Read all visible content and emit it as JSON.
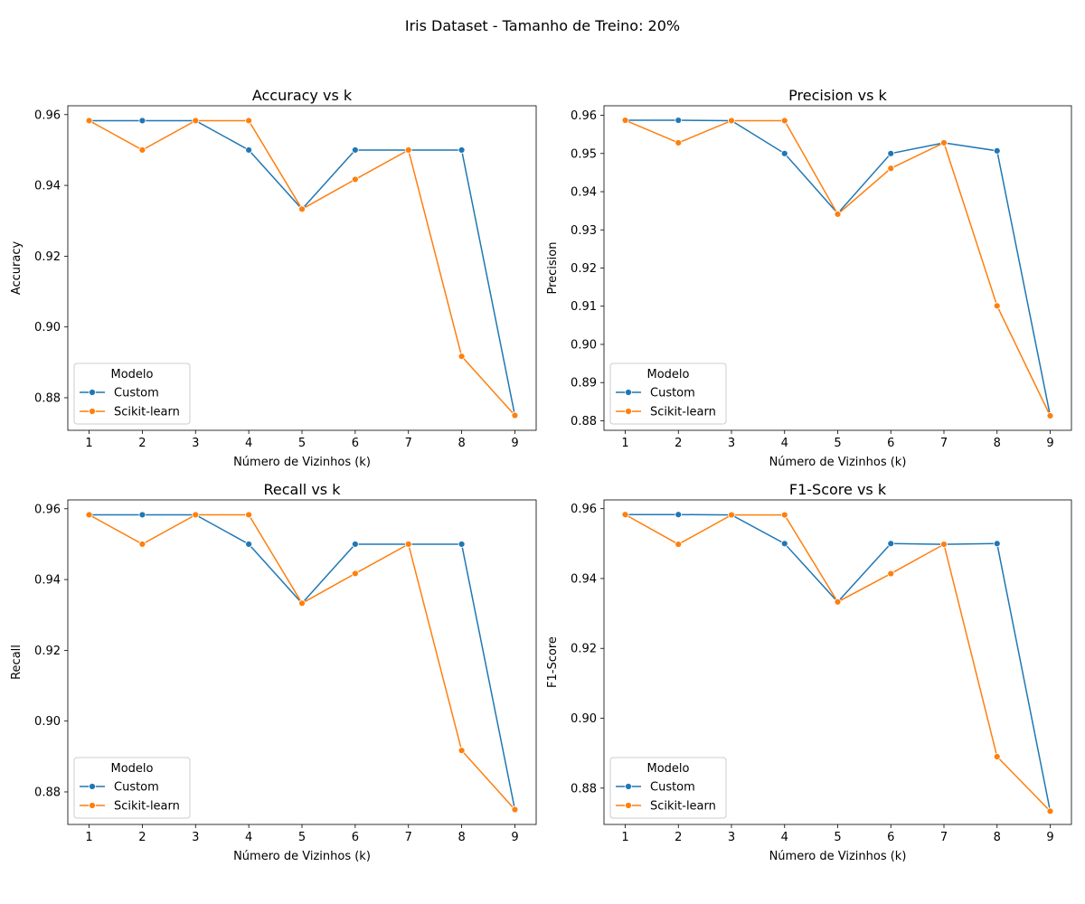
{
  "figure": {
    "suptitle": "Iris Dataset - Tamanho de Treino: 20%",
    "colors": {
      "custom": "#1f77b4",
      "sklearn": "#ff7f0e"
    },
    "legend_title": "Modelo"
  },
  "chart_data": [
    {
      "type": "line",
      "title": "Accuracy vs k",
      "xlabel": "Número de Vizinhos (k)",
      "ylabel": "Accuracy",
      "x": [
        1,
        2,
        3,
        4,
        5,
        6,
        7,
        8,
        9
      ],
      "xticks": [
        "1",
        "2",
        "3",
        "4",
        "5",
        "6",
        "7",
        "8",
        "9"
      ],
      "yticks": [
        "0.88",
        "0.90",
        "0.92",
        "0.94",
        "0.96"
      ],
      "ylim": [
        0.8708,
        0.9625
      ],
      "legend": "lower-left",
      "series": [
        {
          "name": "Custom",
          "values": [
            0.9583,
            0.9583,
            0.9583,
            0.95,
            0.9333,
            0.95,
            0.95,
            0.95,
            0.875
          ]
        },
        {
          "name": "Scikit-learn",
          "values": [
            0.9583,
            0.95,
            0.9583,
            0.9583,
            0.9333,
            0.9417,
            0.95,
            0.8917,
            0.875
          ]
        }
      ]
    },
    {
      "type": "line",
      "title": "Precision vs k",
      "xlabel": "Número de Vizinhos (k)",
      "ylabel": "Precision",
      "x": [
        1,
        2,
        3,
        4,
        5,
        6,
        7,
        8,
        9
      ],
      "xticks": [
        "1",
        "2",
        "3",
        "4",
        "5",
        "6",
        "7",
        "8",
        "9"
      ],
      "yticks": [
        "0.88",
        "0.89",
        "0.90",
        "0.91",
        "0.92",
        "0.93",
        "0.94",
        "0.95",
        "0.96"
      ],
      "ylim": [
        0.8775,
        0.9625
      ],
      "legend": "lower-left",
      "series": [
        {
          "name": "Custom",
          "values": [
            0.9587,
            0.9587,
            0.9586,
            0.95,
            0.9343,
            0.95,
            0.9528,
            0.9507,
            0.8813
          ]
        },
        {
          "name": "Scikit-learn",
          "values": [
            0.9587,
            0.9528,
            0.9586,
            0.9586,
            0.9341,
            0.9461,
            0.9528,
            0.9101,
            0.8813
          ]
        }
      ]
    },
    {
      "type": "line",
      "title": "Recall vs k",
      "xlabel": "Número de Vizinhos (k)",
      "ylabel": "Recall",
      "x": [
        1,
        2,
        3,
        4,
        5,
        6,
        7,
        8,
        9
      ],
      "xticks": [
        "1",
        "2",
        "3",
        "4",
        "5",
        "6",
        "7",
        "8",
        "9"
      ],
      "yticks": [
        "0.88",
        "0.90",
        "0.92",
        "0.94",
        "0.96"
      ],
      "ylim": [
        0.8708,
        0.9625
      ],
      "legend": "lower-left",
      "series": [
        {
          "name": "Custom",
          "values": [
            0.9583,
            0.9583,
            0.9583,
            0.95,
            0.9333,
            0.95,
            0.95,
            0.95,
            0.875
          ]
        },
        {
          "name": "Scikit-learn",
          "values": [
            0.9583,
            0.95,
            0.9583,
            0.9583,
            0.9333,
            0.9417,
            0.95,
            0.8917,
            0.875
          ]
        }
      ]
    },
    {
      "type": "line",
      "title": "F1-Score vs k",
      "xlabel": "Número de Vizinhos (k)",
      "ylabel": "F1-Score",
      "x": [
        1,
        2,
        3,
        4,
        5,
        6,
        7,
        8,
        9
      ],
      "xticks": [
        "1",
        "2",
        "3",
        "4",
        "5",
        "6",
        "7",
        "8",
        "9"
      ],
      "yticks": [
        "0.88",
        "0.90",
        "0.92",
        "0.94",
        "0.96"
      ],
      "ylim": [
        0.8696,
        0.9625
      ],
      "legend": "lower-left",
      "series": [
        {
          "name": "Custom",
          "values": [
            0.9583,
            0.9583,
            0.9582,
            0.95,
            0.9333,
            0.95,
            0.9498,
            0.95,
            0.8734
          ]
        },
        {
          "name": "Scikit-learn",
          "values": [
            0.9583,
            0.9498,
            0.9582,
            0.9582,
            0.9333,
            0.9414,
            0.9498,
            0.889,
            0.8734
          ]
        }
      ]
    }
  ]
}
